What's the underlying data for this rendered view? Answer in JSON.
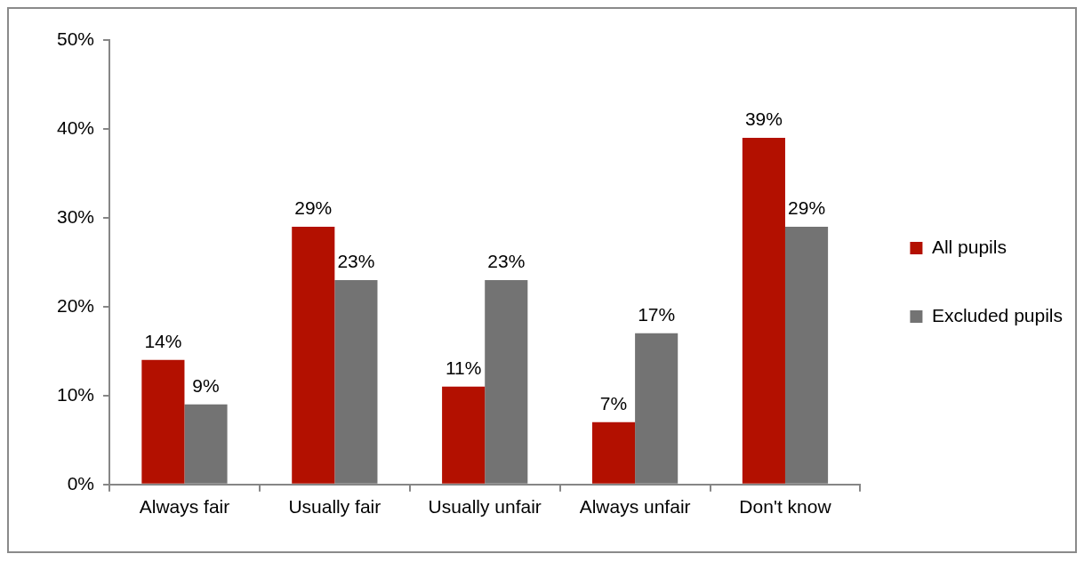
{
  "chart_data": {
    "type": "bar",
    "categories": [
      "Always fair",
      "Usually fair",
      "Usually unfair",
      "Always unfair",
      "Don't know"
    ],
    "series": [
      {
        "name": "All pupils",
        "color": "#b31000",
        "values": [
          14,
          29,
          11,
          7,
          39
        ],
        "value_labels": [
          "14%",
          "29%",
          "11%",
          "7%",
          "39%"
        ]
      },
      {
        "name": "Excluded pupils",
        "color": "#737373",
        "values": [
          9,
          23,
          23,
          17,
          29
        ],
        "value_labels": [
          "9%",
          "23%",
          "23%",
          "17%",
          "29%"
        ]
      }
    ],
    "ylim": [
      0,
      50
    ],
    "yticks": [
      {
        "value": 0,
        "label": "0%"
      },
      {
        "value": 10,
        "label": "10%"
      },
      {
        "value": 20,
        "label": "20%"
      },
      {
        "value": 30,
        "label": "30%"
      },
      {
        "value": 40,
        "label": "40%"
      },
      {
        "value": 50,
        "label": "50%"
      }
    ],
    "grid": false,
    "legend": "right"
  }
}
